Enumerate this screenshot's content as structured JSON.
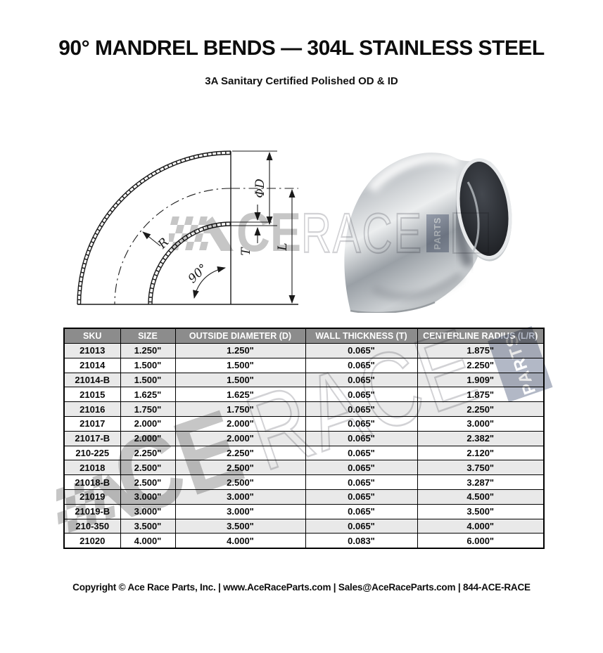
{
  "page": {
    "title": "90° MANDREL BENDS — 304L STAINLESS STEEL",
    "subtitle": "3A Sanitary Certified Polished OD & ID",
    "footer": "Copyright © Ace Race Parts, Inc. | www.AceRaceParts.com | Sales@AceRaceParts.com | 844-ACE-RACE"
  },
  "diagram": {
    "labels": {
      "outside_diameter": "ΦD",
      "wall_thickness": "T",
      "leg_length": "L",
      "radius": "R",
      "bend_angle": "90°"
    }
  },
  "watermark": {
    "full_text": "ACE RACE PARTS",
    "solid_letters": "CE",
    "outline_letters": "RACE",
    "parts_label": "PARTS"
  },
  "table": {
    "headers": [
      "SKU",
      "SIZE",
      "OUTSIDE DIAMETER (D)",
      "WALL THICKNESS (T)",
      "CENTERLINE RADIUS (L/R)"
    ],
    "rows": [
      [
        "21013",
        "1.250\"",
        "1.250\"",
        "0.065\"",
        "1.875\""
      ],
      [
        "21014",
        "1.500\"",
        "1.500\"",
        "0.065\"",
        "2.250\""
      ],
      [
        "21014-B",
        "1.500\"",
        "1.500\"",
        "0.065\"",
        "1.909\""
      ],
      [
        "21015",
        "1.625\"",
        "1.625\"",
        "0.065\"",
        "1.875\""
      ],
      [
        "21016",
        "1.750\"",
        "1.750\"",
        "0.065\"",
        "2.250\""
      ],
      [
        "21017",
        "2.000\"",
        "2.000\"",
        "0.065\"",
        "3.000\""
      ],
      [
        "21017-B",
        "2.000\"",
        "2.000\"",
        "0.065\"",
        "2.382\""
      ],
      [
        "210-225",
        "2.250\"",
        "2.250\"",
        "0.065\"",
        "2.120\""
      ],
      [
        "21018",
        "2.500\"",
        "2.500\"",
        "0.065\"",
        "3.750\""
      ],
      [
        "21018-B",
        "2.500\"",
        "2.500\"",
        "0.065\"",
        "3.287\""
      ],
      [
        "21019",
        "3.000\"",
        "3.000\"",
        "0.065\"",
        "4.500\""
      ],
      [
        "21019-B",
        "3.000\"",
        "3.000\"",
        "0.065\"",
        "3.500\""
      ],
      [
        "210-350",
        "3.500\"",
        "3.500\"",
        "0.065\"",
        "4.000\""
      ],
      [
        "21020",
        "4.000\"",
        "4.000\"",
        "0.083\"",
        "6.000\""
      ]
    ]
  },
  "colors": {
    "header_bg": "#8c8c8c",
    "header_text": "#ffffff",
    "row_alt_bg": "#e9e9e9",
    "table_border": "#000000",
    "watermark_gray": "#c6c6c6",
    "parts_box": "#b2b8c6",
    "drawing_line": "#1a1a1a"
  }
}
